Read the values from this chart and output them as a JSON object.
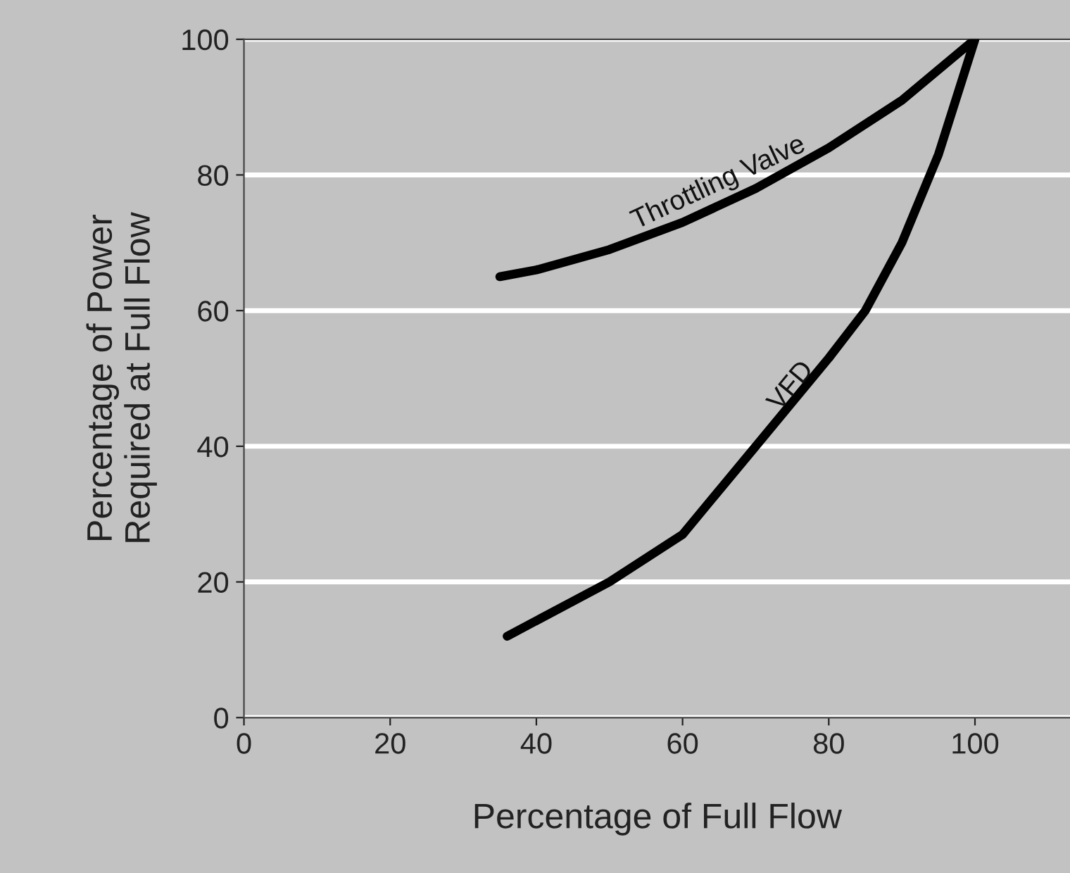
{
  "chart_data": {
    "type": "line",
    "xlabel": "Percentage of Full Flow",
    "ylabel": "Percentage of Power\nRequired at Full Flow",
    "series": [
      {
        "name": "Throttling Valve",
        "color": "#000000",
        "x": [
          35,
          40,
          50,
          60,
          70,
          80,
          90,
          100
        ],
        "values": [
          65,
          66,
          69,
          73,
          78,
          84,
          91,
          100
        ]
      },
      {
        "name": "VFD",
        "color": "#000000",
        "x": [
          36,
          50,
          60,
          70,
          80,
          85,
          90,
          95,
          100
        ],
        "values": [
          12,
          20,
          27,
          40,
          53,
          60,
          70,
          83,
          100
        ]
      }
    ],
    "xlim": [
      0,
      113
    ],
    "xticks": [
      0,
      20,
      40,
      60,
      80,
      100
    ],
    "ylim": [
      0,
      100
    ],
    "yticks": [
      0,
      20,
      40,
      60,
      80,
      100
    ],
    "grid": "y",
    "legend": false,
    "marker": "none",
    "line_style": "solid"
  }
}
